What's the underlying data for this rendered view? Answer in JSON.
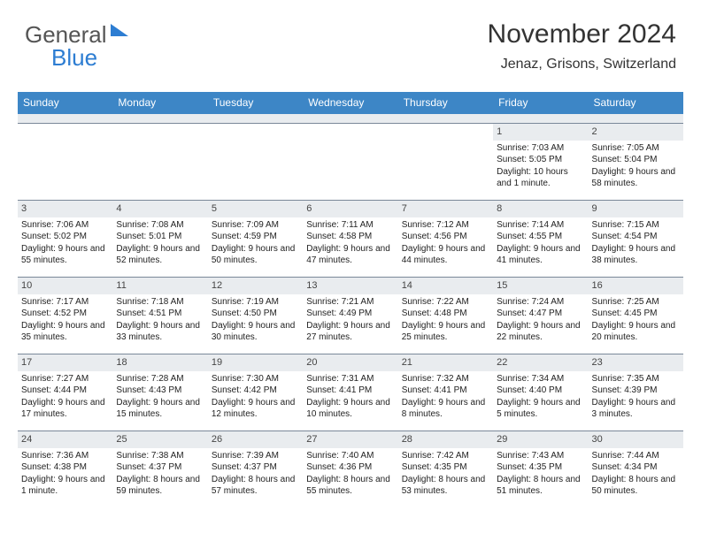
{
  "logo": {
    "part1": "General",
    "part2": "Blue"
  },
  "title": "November 2024",
  "subtitle": "Jenaz, Grisons, Switzerland",
  "colors": {
    "header_bg": "#3d86c6",
    "header_fg": "#ffffff",
    "daynum_bg": "#e9ecef",
    "border": "#7a8899",
    "logo_accent": "#2d7dd2"
  },
  "weekdays": [
    "Sunday",
    "Monday",
    "Tuesday",
    "Wednesday",
    "Thursday",
    "Friday",
    "Saturday"
  ],
  "weeks": [
    [
      {
        "n": "",
        "sr": "",
        "ss": "",
        "dl": ""
      },
      {
        "n": "",
        "sr": "",
        "ss": "",
        "dl": ""
      },
      {
        "n": "",
        "sr": "",
        "ss": "",
        "dl": ""
      },
      {
        "n": "",
        "sr": "",
        "ss": "",
        "dl": ""
      },
      {
        "n": "",
        "sr": "",
        "ss": "",
        "dl": ""
      },
      {
        "n": "1",
        "sr": "Sunrise: 7:03 AM",
        "ss": "Sunset: 5:05 PM",
        "dl": "Daylight: 10 hours and 1 minute."
      },
      {
        "n": "2",
        "sr": "Sunrise: 7:05 AM",
        "ss": "Sunset: 5:04 PM",
        "dl": "Daylight: 9 hours and 58 minutes."
      }
    ],
    [
      {
        "n": "3",
        "sr": "Sunrise: 7:06 AM",
        "ss": "Sunset: 5:02 PM",
        "dl": "Daylight: 9 hours and 55 minutes."
      },
      {
        "n": "4",
        "sr": "Sunrise: 7:08 AM",
        "ss": "Sunset: 5:01 PM",
        "dl": "Daylight: 9 hours and 52 minutes."
      },
      {
        "n": "5",
        "sr": "Sunrise: 7:09 AM",
        "ss": "Sunset: 4:59 PM",
        "dl": "Daylight: 9 hours and 50 minutes."
      },
      {
        "n": "6",
        "sr": "Sunrise: 7:11 AM",
        "ss": "Sunset: 4:58 PM",
        "dl": "Daylight: 9 hours and 47 minutes."
      },
      {
        "n": "7",
        "sr": "Sunrise: 7:12 AM",
        "ss": "Sunset: 4:56 PM",
        "dl": "Daylight: 9 hours and 44 minutes."
      },
      {
        "n": "8",
        "sr": "Sunrise: 7:14 AM",
        "ss": "Sunset: 4:55 PM",
        "dl": "Daylight: 9 hours and 41 minutes."
      },
      {
        "n": "9",
        "sr": "Sunrise: 7:15 AM",
        "ss": "Sunset: 4:54 PM",
        "dl": "Daylight: 9 hours and 38 minutes."
      }
    ],
    [
      {
        "n": "10",
        "sr": "Sunrise: 7:17 AM",
        "ss": "Sunset: 4:52 PM",
        "dl": "Daylight: 9 hours and 35 minutes."
      },
      {
        "n": "11",
        "sr": "Sunrise: 7:18 AM",
        "ss": "Sunset: 4:51 PM",
        "dl": "Daylight: 9 hours and 33 minutes."
      },
      {
        "n": "12",
        "sr": "Sunrise: 7:19 AM",
        "ss": "Sunset: 4:50 PM",
        "dl": "Daylight: 9 hours and 30 minutes."
      },
      {
        "n": "13",
        "sr": "Sunrise: 7:21 AM",
        "ss": "Sunset: 4:49 PM",
        "dl": "Daylight: 9 hours and 27 minutes."
      },
      {
        "n": "14",
        "sr": "Sunrise: 7:22 AM",
        "ss": "Sunset: 4:48 PM",
        "dl": "Daylight: 9 hours and 25 minutes."
      },
      {
        "n": "15",
        "sr": "Sunrise: 7:24 AM",
        "ss": "Sunset: 4:47 PM",
        "dl": "Daylight: 9 hours and 22 minutes."
      },
      {
        "n": "16",
        "sr": "Sunrise: 7:25 AM",
        "ss": "Sunset: 4:45 PM",
        "dl": "Daylight: 9 hours and 20 minutes."
      }
    ],
    [
      {
        "n": "17",
        "sr": "Sunrise: 7:27 AM",
        "ss": "Sunset: 4:44 PM",
        "dl": "Daylight: 9 hours and 17 minutes."
      },
      {
        "n": "18",
        "sr": "Sunrise: 7:28 AM",
        "ss": "Sunset: 4:43 PM",
        "dl": "Daylight: 9 hours and 15 minutes."
      },
      {
        "n": "19",
        "sr": "Sunrise: 7:30 AM",
        "ss": "Sunset: 4:42 PM",
        "dl": "Daylight: 9 hours and 12 minutes."
      },
      {
        "n": "20",
        "sr": "Sunrise: 7:31 AM",
        "ss": "Sunset: 4:41 PM",
        "dl": "Daylight: 9 hours and 10 minutes."
      },
      {
        "n": "21",
        "sr": "Sunrise: 7:32 AM",
        "ss": "Sunset: 4:41 PM",
        "dl": "Daylight: 9 hours and 8 minutes."
      },
      {
        "n": "22",
        "sr": "Sunrise: 7:34 AM",
        "ss": "Sunset: 4:40 PM",
        "dl": "Daylight: 9 hours and 5 minutes."
      },
      {
        "n": "23",
        "sr": "Sunrise: 7:35 AM",
        "ss": "Sunset: 4:39 PM",
        "dl": "Daylight: 9 hours and 3 minutes."
      }
    ],
    [
      {
        "n": "24",
        "sr": "Sunrise: 7:36 AM",
        "ss": "Sunset: 4:38 PM",
        "dl": "Daylight: 9 hours and 1 minute."
      },
      {
        "n": "25",
        "sr": "Sunrise: 7:38 AM",
        "ss": "Sunset: 4:37 PM",
        "dl": "Daylight: 8 hours and 59 minutes."
      },
      {
        "n": "26",
        "sr": "Sunrise: 7:39 AM",
        "ss": "Sunset: 4:37 PM",
        "dl": "Daylight: 8 hours and 57 minutes."
      },
      {
        "n": "27",
        "sr": "Sunrise: 7:40 AM",
        "ss": "Sunset: 4:36 PM",
        "dl": "Daylight: 8 hours and 55 minutes."
      },
      {
        "n": "28",
        "sr": "Sunrise: 7:42 AM",
        "ss": "Sunset: 4:35 PM",
        "dl": "Daylight: 8 hours and 53 minutes."
      },
      {
        "n": "29",
        "sr": "Sunrise: 7:43 AM",
        "ss": "Sunset: 4:35 PM",
        "dl": "Daylight: 8 hours and 51 minutes."
      },
      {
        "n": "30",
        "sr": "Sunrise: 7:44 AM",
        "ss": "Sunset: 4:34 PM",
        "dl": "Daylight: 8 hours and 50 minutes."
      }
    ]
  ]
}
